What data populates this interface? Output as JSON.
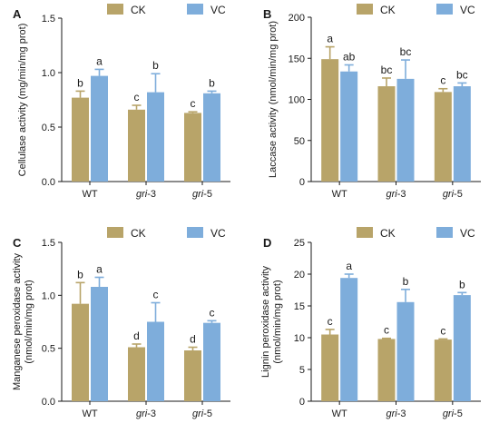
{
  "colors": {
    "ck": "#b8a469",
    "vc": "#7eaddb",
    "axis": "#1a1a1a"
  },
  "chart_data": [
    {
      "type": "bar",
      "panel_letter": "A",
      "ylabel": "Cellulase activity (mg/min/mg prot)",
      "ylim": [
        0.0,
        1.5
      ],
      "yticks": [
        "0.0",
        "0.5",
        "1.0",
        "1.5"
      ],
      "ytick_values": [
        0.0,
        0.5,
        1.0,
        1.5
      ],
      "categories": [
        {
          "pre": "",
          "it": "",
          "post": "WT"
        },
        {
          "pre": "",
          "it": "gri",
          "post": "-3"
        },
        {
          "pre": "",
          "it": "gri",
          "post": "-5"
        }
      ],
      "series": [
        {
          "name": "CK",
          "values": [
            0.77,
            0.66,
            0.63
          ],
          "errors": [
            0.06,
            0.04,
            0.01
          ],
          "labels": [
            "b",
            "c",
            "c"
          ]
        },
        {
          "name": "VC",
          "values": [
            0.97,
            0.82,
            0.81
          ],
          "errors": [
            0.06,
            0.17,
            0.02
          ],
          "labels": [
            "a",
            "b",
            "b"
          ]
        }
      ],
      "legend": "top"
    },
    {
      "type": "bar",
      "panel_letter": "B",
      "ylabel": "Laccase activity (nmol/min/mg prot)",
      "ylim": [
        0,
        200
      ],
      "yticks": [
        "0",
        "50",
        "100",
        "150",
        "200"
      ],
      "ytick_values": [
        0,
        50,
        100,
        150,
        200
      ],
      "categories": [
        {
          "pre": "",
          "it": "",
          "post": "WT"
        },
        {
          "pre": "",
          "it": "gri",
          "post": "-3"
        },
        {
          "pre": "",
          "it": "gri",
          "post": "-5"
        }
      ],
      "series": [
        {
          "name": "CK",
          "values": [
            149,
            116,
            109
          ],
          "errors": [
            15,
            10,
            4
          ],
          "labels": [
            "a",
            "bc",
            "c"
          ]
        },
        {
          "name": "VC",
          "values": [
            134,
            125,
            116
          ],
          "errors": [
            8,
            23,
            4
          ],
          "labels": [
            "ab",
            "bc",
            "bc"
          ]
        }
      ],
      "legend": "top"
    },
    {
      "type": "bar",
      "panel_letter": "C",
      "ylabel_lines": [
        "Manganese peroxidase activity",
        "(nmol/min/mg prot)"
      ],
      "ylim": [
        0.0,
        1.5
      ],
      "yticks": [
        "0.0",
        "0.5",
        "1.0",
        "1.5"
      ],
      "ytick_values": [
        0.0,
        0.5,
        1.0,
        1.5
      ],
      "categories": [
        {
          "pre": "",
          "it": "",
          "post": "WT"
        },
        {
          "pre": "",
          "it": "gri",
          "post": "-3"
        },
        {
          "pre": "",
          "it": "gri",
          "post": "-5"
        }
      ],
      "series": [
        {
          "name": "CK",
          "values": [
            0.92,
            0.51,
            0.48
          ],
          "errors": [
            0.2,
            0.03,
            0.03
          ],
          "labels": [
            "b",
            "d",
            "d"
          ]
        },
        {
          "name": "VC",
          "values": [
            1.08,
            0.75,
            0.74
          ],
          "errors": [
            0.09,
            0.18,
            0.02
          ],
          "labels": [
            "a",
            "c",
            "c"
          ]
        }
      ],
      "legend": "top"
    },
    {
      "type": "bar",
      "panel_letter": "D",
      "ylabel_lines": [
        "Lignin peroxidase activity",
        "(nmol/min/mg prot)"
      ],
      "ylim": [
        0,
        25
      ],
      "yticks": [
        "0",
        "5",
        "10",
        "15",
        "20",
        "25"
      ],
      "ytick_values": [
        0,
        5,
        10,
        15,
        20,
        25
      ],
      "categories": [
        {
          "pre": "",
          "it": "",
          "post": "WT"
        },
        {
          "pre": "",
          "it": "gri",
          "post": "-3"
        },
        {
          "pre": "",
          "it": "gri",
          "post": "-5"
        }
      ],
      "series": [
        {
          "name": "CK",
          "values": [
            10.5,
            9.8,
            9.7
          ],
          "errors": [
            0.8,
            0.1,
            0.1
          ],
          "labels": [
            "c",
            "c",
            "c"
          ]
        },
        {
          "name": "VC",
          "values": [
            19.4,
            15.6,
            16.7
          ],
          "errors": [
            0.6,
            2.0,
            0.4
          ],
          "labels": [
            "a",
            "b",
            "b"
          ]
        }
      ],
      "legend": "top"
    }
  ]
}
